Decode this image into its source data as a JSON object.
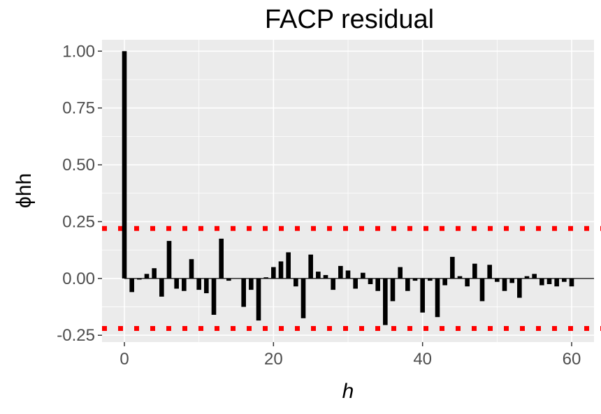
{
  "chart_data": {
    "type": "bar",
    "title": "FACP residual",
    "xlabel": "h",
    "ylabel": "ϕhh",
    "xlim": [
      -3,
      63
    ],
    "ylim": [
      -0.28,
      1.05
    ],
    "xticks": [
      0,
      20,
      40,
      60
    ],
    "xtick_labels": [
      "0",
      "20",
      "40",
      "60"
    ],
    "yticks": [
      -0.25,
      0.0,
      0.25,
      0.5,
      0.75,
      1.0
    ],
    "ytick_labels": [
      "-0.25",
      "0.00",
      "0.25",
      "0.50",
      "0.75",
      "1.00"
    ],
    "grid": true,
    "colors": {
      "panel": "#ebebeb",
      "grid": "#ffffff",
      "bars": "#000000",
      "confidence_band": "#ff0000",
      "zero_line": "#000000"
    },
    "confidence_bounds": [
      0.22,
      -0.22
    ],
    "x": [
      0,
      1,
      2,
      3,
      4,
      5,
      6,
      7,
      8,
      9,
      10,
      11,
      12,
      13,
      14,
      15,
      16,
      17,
      18,
      19,
      20,
      21,
      22,
      23,
      24,
      25,
      26,
      27,
      28,
      29,
      30,
      31,
      32,
      33,
      34,
      35,
      36,
      37,
      38,
      39,
      40,
      41,
      42,
      43,
      44,
      45,
      46,
      47,
      48,
      49,
      50,
      51,
      52,
      53,
      54,
      55,
      56,
      57,
      58,
      59,
      60,
      61
    ],
    "values": [
      1.0,
      -0.06,
      -0.005,
      0.02,
      0.045,
      -0.08,
      0.165,
      -0.045,
      -0.055,
      0.085,
      -0.05,
      -0.065,
      -0.16,
      0.175,
      -0.01,
      0.0,
      -0.125,
      -0.05,
      -0.185,
      0.005,
      0.05,
      0.075,
      0.115,
      -0.035,
      -0.175,
      0.105,
      0.03,
      0.015,
      -0.05,
      0.055,
      0.035,
      -0.045,
      0.025,
      -0.025,
      -0.055,
      -0.205,
      -0.1,
      0.05,
      -0.055,
      -0.01,
      -0.15,
      -0.01,
      -0.17,
      -0.03,
      0.095,
      0.01,
      -0.035,
      0.065,
      -0.1,
      0.06,
      -0.015,
      -0.055,
      -0.02,
      -0.085,
      0.01,
      0.02,
      -0.03,
      -0.025,
      -0.035,
      -0.015,
      -0.035,
      0.0
    ]
  }
}
